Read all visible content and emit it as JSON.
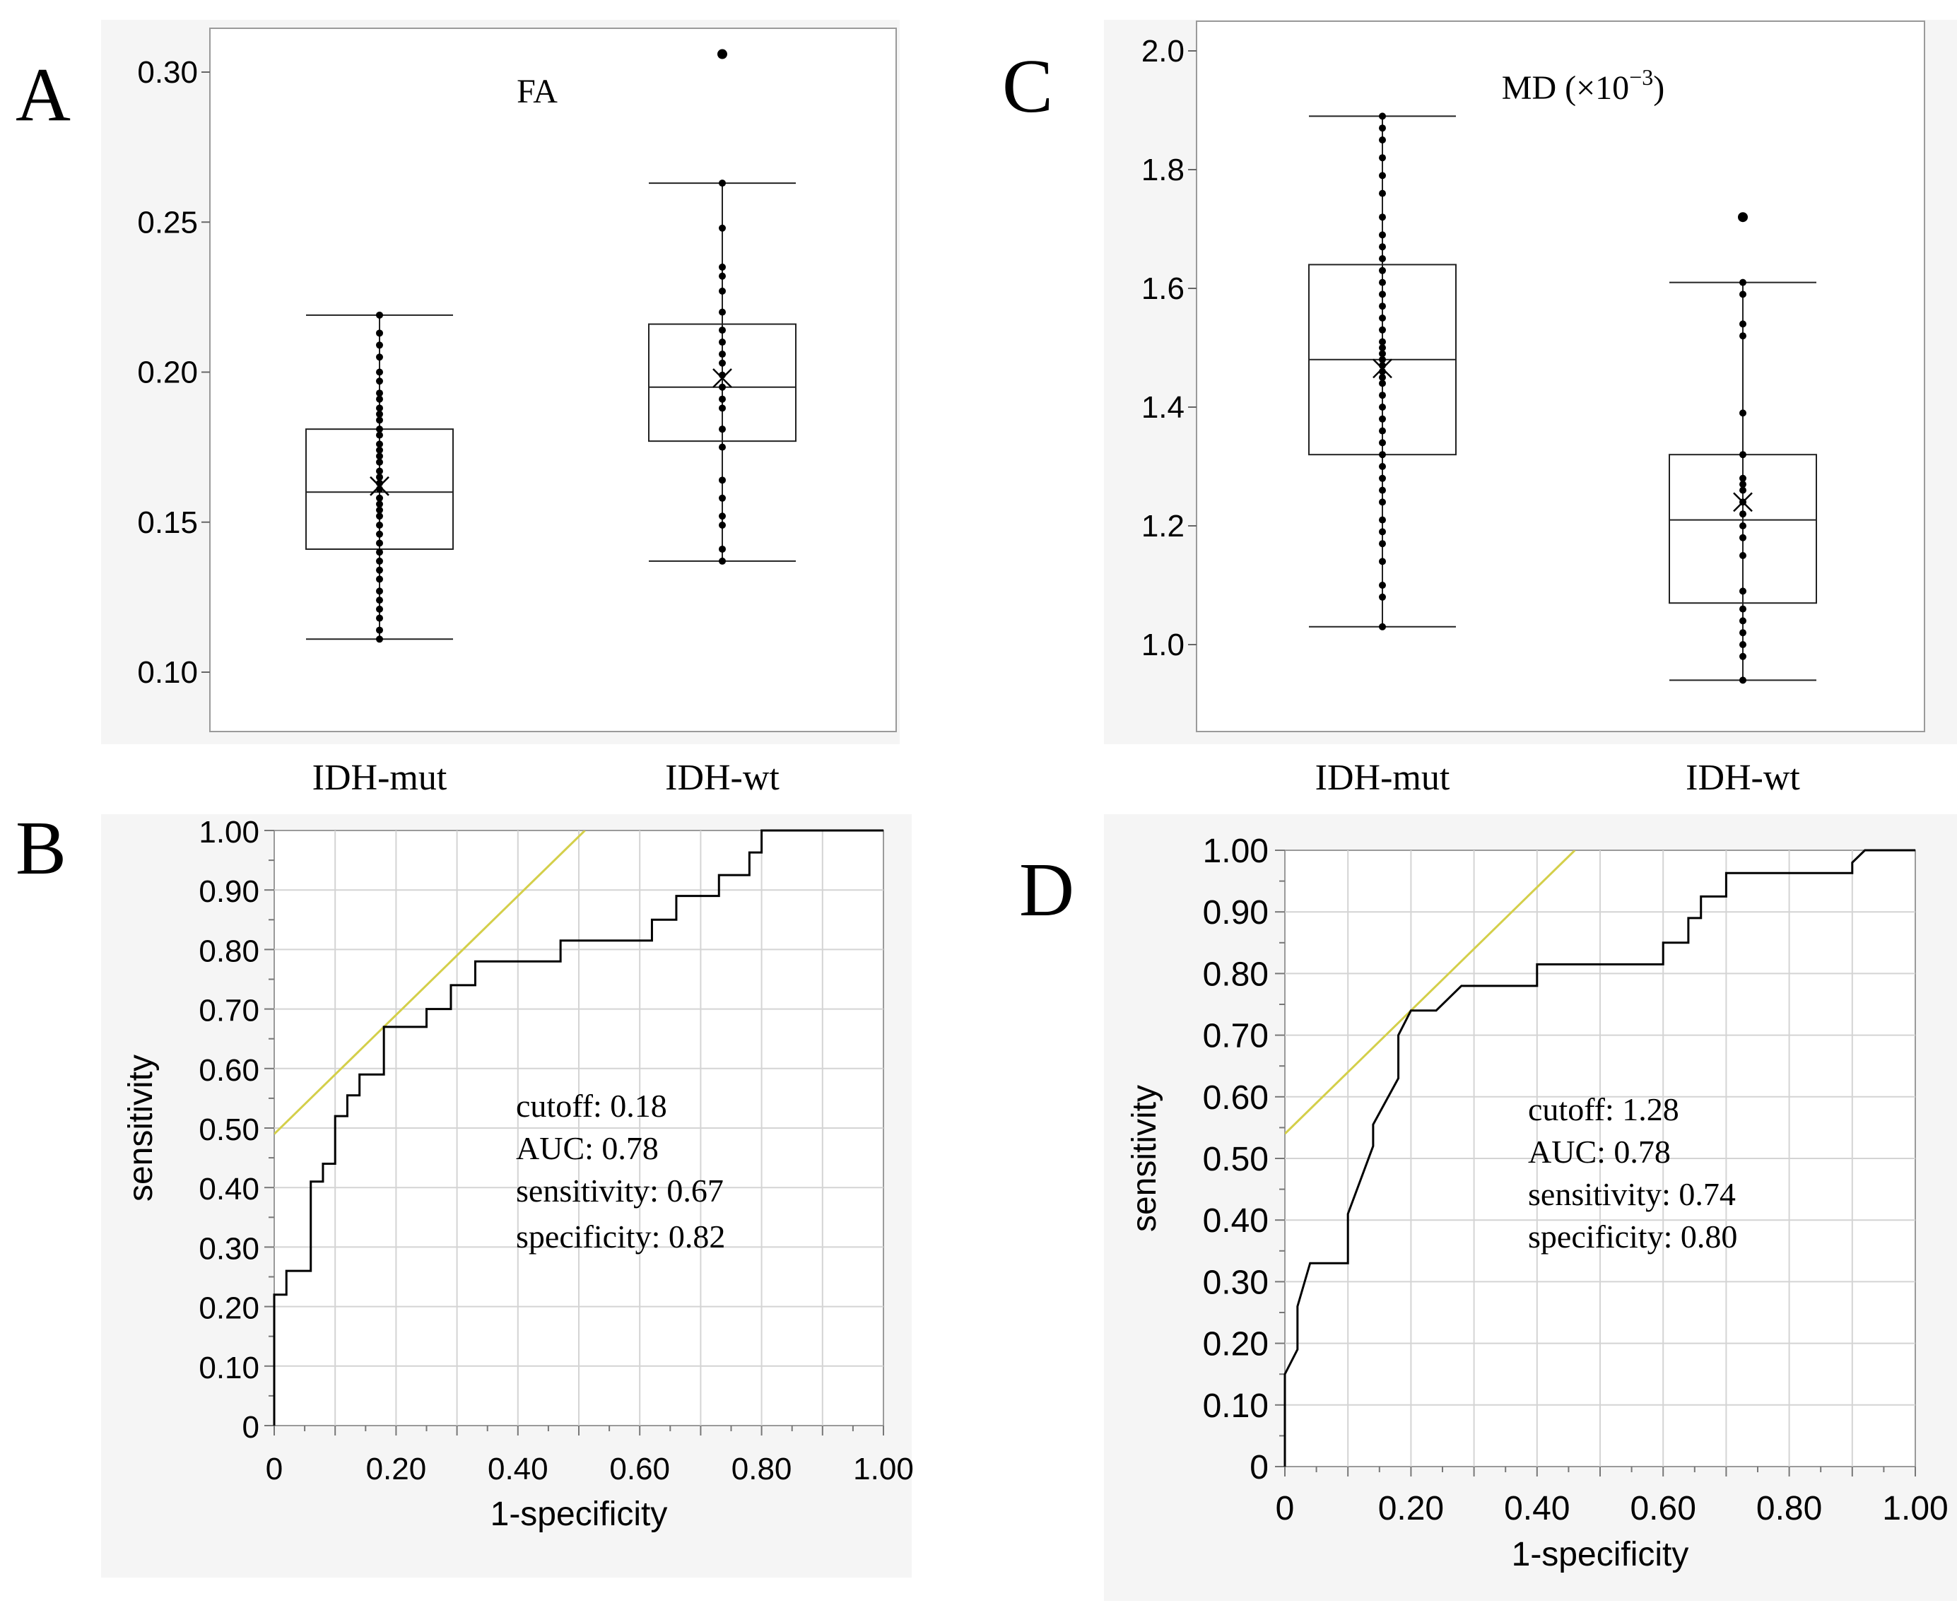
{
  "panels": {
    "A": {
      "letter": "A"
    },
    "B": {
      "letter": "B"
    },
    "C": {
      "letter": "C"
    },
    "D": {
      "letter": "D"
    }
  },
  "chart_data": [
    {
      "id": "A",
      "type": "box",
      "title": "FA",
      "categories": [
        "IDH-mut",
        "IDH-wt"
      ],
      "ylim": [
        0.08,
        0.32
      ],
      "yticks": [
        "0.10",
        "0.15",
        "0.20",
        "0.25",
        "0.30"
      ],
      "ytick_values": [
        0.1,
        0.15,
        0.2,
        0.25,
        0.3
      ],
      "boxes": [
        {
          "name": "IDH-mut",
          "whisker_low": 0.111,
          "q1": 0.141,
          "median": 0.16,
          "q3": 0.181,
          "whisker_high": 0.219,
          "mean": 0.162,
          "points": [
            0.219,
            0.213,
            0.209,
            0.205,
            0.2,
            0.197,
            0.193,
            0.191,
            0.188,
            0.186,
            0.184,
            0.181,
            0.179,
            0.176,
            0.174,
            0.172,
            0.17,
            0.167,
            0.165,
            0.163,
            0.161,
            0.158,
            0.156,
            0.154,
            0.152,
            0.149,
            0.146,
            0.143,
            0.14,
            0.137,
            0.134,
            0.131,
            0.127,
            0.124,
            0.121,
            0.118,
            0.114,
            0.111
          ]
        },
        {
          "name": "IDH-wt",
          "whisker_low": 0.137,
          "q1": 0.177,
          "median": 0.195,
          "q3": 0.216,
          "whisker_high": 0.263,
          "mean": 0.198,
          "outliers": [
            0.306
          ],
          "points": [
            0.263,
            0.248,
            0.235,
            0.232,
            0.227,
            0.22,
            0.214,
            0.21,
            0.206,
            0.203,
            0.199,
            0.195,
            0.191,
            0.188,
            0.181,
            0.175,
            0.164,
            0.158,
            0.152,
            0.149,
            0.141,
            0.137
          ]
        }
      ]
    },
    {
      "id": "B",
      "type": "line",
      "xlabel": "1-specificity",
      "ylabel": "sensitivity",
      "xlim": [
        0,
        1
      ],
      "ylim": [
        0,
        1
      ],
      "grid": true,
      "xticks": [
        "0",
        "0.20",
        "0.40",
        "0.60",
        "0.80",
        "1.00"
      ],
      "yticks": [
        "0",
        "0.10",
        "0.20",
        "0.30",
        "0.40",
        "0.50",
        "0.60",
        "0.70",
        "0.80",
        "0.90",
        "1.00"
      ],
      "series": [
        {
          "x": [
            0,
            0,
            0.02,
            0.02,
            0.06,
            0.06,
            0.08,
            0.08,
            0.1,
            0.1,
            0.12,
            0.12,
            0.14,
            0.14,
            0.18,
            0.18,
            0.25,
            0.25,
            0.29,
            0.29,
            0.33,
            0.33,
            0.47,
            0.47,
            0.62,
            0.62,
            0.66,
            0.66,
            0.73,
            0.73,
            0.78,
            0.78,
            0.8,
            0.8,
            1.0
          ],
          "y": [
            0,
            0.22,
            0.22,
            0.26,
            0.26,
            0.41,
            0.41,
            0.44,
            0.44,
            0.52,
            0.52,
            0.555,
            0.555,
            0.59,
            0.59,
            0.67,
            0.67,
            0.7,
            0.7,
            0.74,
            0.74,
            0.78,
            0.78,
            0.815,
            0.815,
            0.85,
            0.85,
            0.89,
            0.89,
            0.925,
            0.925,
            0.963,
            0.963,
            1.0,
            1.0
          ]
        },
        {
          "x": [
            0,
            0.51
          ],
          "y": [
            0.49,
            1.0
          ]
        }
      ],
      "annotations": [
        "cutoff: 0.18",
        "AUC: 0.78",
        "sensitivity: 0.67",
        "specificity: 0.82"
      ]
    },
    {
      "id": "C",
      "type": "box",
      "title": "MD (×10",
      "title_exponent": "−3",
      "title_close": ")",
      "categories": [
        "IDH-mut",
        "IDH-wt"
      ],
      "ylim": [
        0.84,
        2.05
      ],
      "yticks": [
        "1.0",
        "1.2",
        "1.4",
        "1.6",
        "1.8",
        "2.0"
      ],
      "ytick_values": [
        1.0,
        1.2,
        1.4,
        1.6,
        1.8,
        2.0
      ],
      "boxes": [
        {
          "name": "IDH-mut",
          "whisker_low": 1.03,
          "q1": 1.32,
          "median": 1.48,
          "q3": 1.64,
          "whisker_high": 1.89,
          "mean": 1.465,
          "points": [
            1.89,
            1.87,
            1.85,
            1.82,
            1.79,
            1.76,
            1.72,
            1.69,
            1.67,
            1.65,
            1.63,
            1.61,
            1.59,
            1.57,
            1.55,
            1.53,
            1.51,
            1.5,
            1.49,
            1.48,
            1.47,
            1.46,
            1.45,
            1.44,
            1.42,
            1.4,
            1.38,
            1.36,
            1.34,
            1.32,
            1.3,
            1.28,
            1.26,
            1.24,
            1.21,
            1.19,
            1.17,
            1.14,
            1.1,
            1.08,
            1.03
          ]
        },
        {
          "name": "IDH-wt",
          "whisker_low": 0.94,
          "q1": 1.07,
          "median": 1.21,
          "q3": 1.32,
          "whisker_high": 1.61,
          "mean": 1.24,
          "outliers": [
            1.72
          ],
          "points": [
            1.61,
            1.59,
            1.54,
            1.52,
            1.39,
            1.32,
            1.28,
            1.27,
            1.26,
            1.24,
            1.22,
            1.2,
            1.18,
            1.15,
            1.09,
            1.06,
            1.04,
            1.02,
            1.0,
            0.98,
            0.94
          ]
        }
      ]
    },
    {
      "id": "D",
      "type": "line",
      "xlabel": "1-specificity",
      "ylabel": "sensitivity",
      "xlim": [
        0,
        1
      ],
      "ylim": [
        0,
        1
      ],
      "grid": true,
      "xticks": [
        "0",
        "0.20",
        "0.40",
        "0.60",
        "0.80",
        "1.00"
      ],
      "yticks": [
        "0",
        "0.10",
        "0.20",
        "0.30",
        "0.40",
        "0.50",
        "0.60",
        "0.70",
        "0.80",
        "0.90",
        "1.00"
      ],
      "series": [
        {
          "x": [
            0,
            0,
            0.02,
            0.02,
            0.04,
            0.04,
            0.1,
            0.1,
            0.14,
            0.14,
            0.18,
            0.18,
            0.2,
            0.2,
            0.24,
            0.28,
            0.4,
            0.4,
            0.6,
            0.6,
            0.62,
            0.64,
            0.64,
            0.66,
            0.66,
            0.7,
            0.7,
            0.74,
            0.74,
            0.9,
            0.9,
            0.92,
            1.0
          ],
          "y": [
            0,
            0.15,
            0.19,
            0.26,
            0.33,
            0.33,
            0.33,
            0.41,
            0.52,
            0.555,
            0.63,
            0.7,
            0.74,
            0.74,
            0.74,
            0.78,
            0.78,
            0.815,
            0.815,
            0.85,
            0.85,
            0.85,
            0.89,
            0.89,
            0.925,
            0.925,
            0.963,
            0.963,
            0.963,
            0.963,
            0.98,
            1.0,
            1.0
          ]
        },
        {
          "x": [
            0,
            0.46
          ],
          "y": [
            0.54,
            1.0
          ]
        }
      ],
      "annotations": [
        "cutoff: 1.28",
        "AUC: 0.78",
        "sensitivity: 0.74",
        "specificity: 0.80"
      ]
    }
  ]
}
